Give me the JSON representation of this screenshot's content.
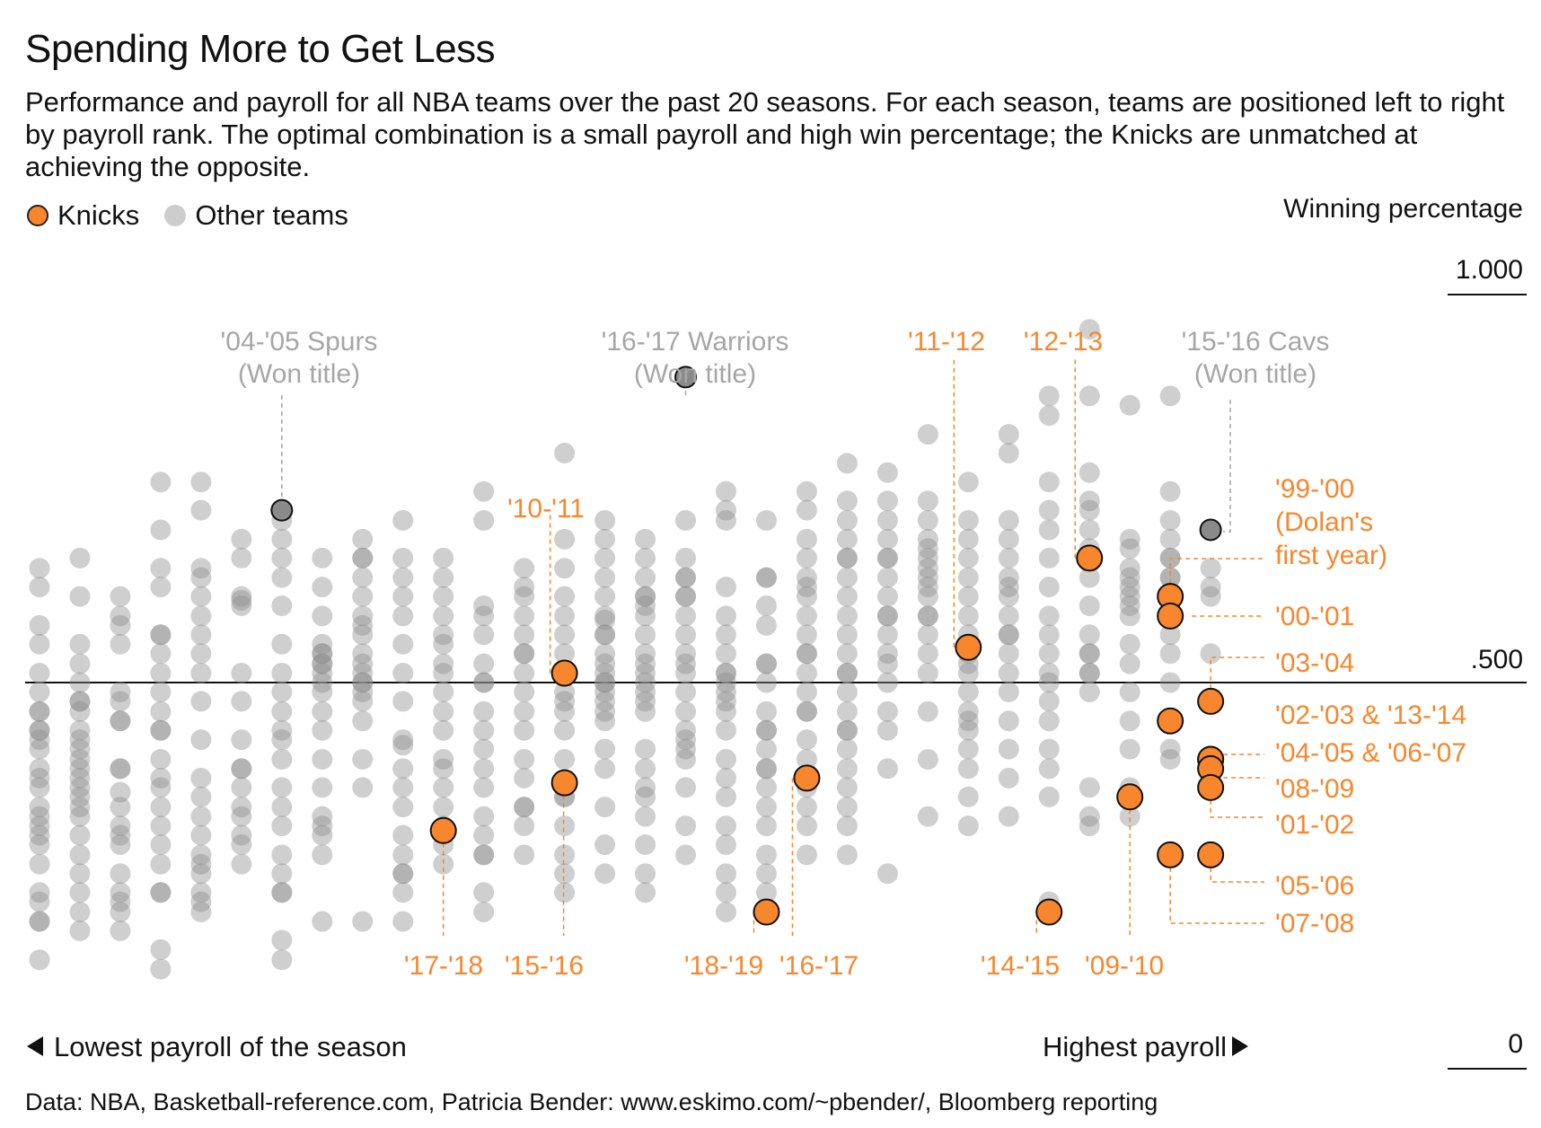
{
  "title": "Spending More to Get Less",
  "subtitle": "Performance and payroll for all NBA teams over the past 20 seasons. For each season, teams are positioned left to right by payroll rank. The optimal combination is a small payroll and high win percentage; the Knicks are unmatched at achieving the opposite.",
  "legend": {
    "knicks": "Knicks",
    "other": "Other teams"
  },
  "footer": "Data: NBA, Basketball-reference.com, Patricia Bender: www.eskimo.com/~pbender/, Bloomberg reporting",
  "colors": {
    "knicks": "#f7862d",
    "other": "#b9b9b9",
    "highlight": "#8a8a8a",
    "annotation_gray": "#a6a6a6"
  },
  "chart_data": {
    "type": "scatter",
    "ylabel": "Winning percentage",
    "ylim": [
      0,
      1
    ],
    "ytick_labels": {
      "top": "1.000",
      "mid": ".500",
      "bottom": "0"
    },
    "x_left_label": "Lowest payroll of the season",
    "x_right_label": "Highest payroll",
    "xlim": [
      1,
      30
    ],
    "knicks": [
      {
        "rank": 11,
        "y": 0.311,
        "label": "'17-'18"
      },
      {
        "rank": 14,
        "y": 0.372,
        "label": "'15-'16"
      },
      {
        "rank": 14,
        "y": 0.512,
        "label": "'10-'11"
      },
      {
        "rank": 19,
        "y": 0.207,
        "label": "'18-'19"
      },
      {
        "rank": 20,
        "y": 0.378,
        "label": "'16-'17"
      },
      {
        "rank": 24,
        "y": 0.545,
        "label": "'11-'12"
      },
      {
        "rank": 26,
        "y": 0.207,
        "label": "'14-'15"
      },
      {
        "rank": 27,
        "y": 0.659,
        "label": "'12-'13"
      },
      {
        "rank": 28,
        "y": 0.354,
        "label": "'09-'10"
      },
      {
        "rank": 29,
        "y": 0.61,
        "label": "'99-'00 (Dolan's first year)"
      },
      {
        "rank": 29,
        "y": 0.585,
        "label": "'00-'01"
      },
      {
        "rank": 29,
        "y": 0.451,
        "label": "'02-'03 & '13-'14"
      },
      {
        "rank": 29,
        "y": 0.28,
        "label": "'07-'08"
      },
      {
        "rank": 30,
        "y": 0.476,
        "label": "'03-'04"
      },
      {
        "rank": 30,
        "y": 0.402,
        "label": "'04-'05"
      },
      {
        "rank": 30,
        "y": 0.402,
        "label": "'06-'07"
      },
      {
        "rank": 30,
        "y": 0.39,
        "label": "'08-'09"
      },
      {
        "rank": 30,
        "y": 0.366,
        "label": "'01-'02"
      },
      {
        "rank": 30,
        "y": 0.28,
        "label": "'05-'06"
      }
    ],
    "highlights": [
      {
        "rank": 7,
        "y": 0.72,
        "label": "'04-'05 Spurs",
        "sublabel": "(Won title)"
      },
      {
        "rank": 17,
        "y": 0.89,
        "label": "'16-'17 Warriors",
        "sublabel": "(Won title)"
      },
      {
        "rank": 30,
        "y": 0.695,
        "label": "'15-'16 Cavs",
        "sublabel": "(Won title)"
      }
    ],
    "other_teams": [
      [
        0.646,
        0.622,
        0.463,
        0.439,
        0.415,
        0.39,
        0.366,
        0.341,
        0.317,
        0.293,
        0.268,
        0.232,
        0.22,
        0.195,
        0.146,
        0.573,
        0.488,
        0.549,
        0.512,
        0.463,
        0.427,
        0.378,
        0.329,
        0.195,
        0.439,
        0.305
      ],
      [
        0.659,
        0.549,
        0.5,
        0.476,
        0.463,
        0.427,
        0.415,
        0.402,
        0.39,
        0.378,
        0.354,
        0.329,
        0.305,
        0.28,
        0.256,
        0.232,
        0.183,
        0.61,
        0.476,
        0.366,
        0.207,
        0.524,
        0.439,
        0.341
      ],
      [
        0.61,
        0.585,
        0.573,
        0.476,
        0.451,
        0.39,
        0.341,
        0.317,
        0.293,
        0.256,
        0.232,
        0.207,
        0.183,
        0.488,
        0.36,
        0.39,
        0.22,
        0.549,
        0.451,
        0.305
      ],
      [
        0.756,
        0.695,
        0.646,
        0.622,
        0.561,
        0.537,
        0.512,
        0.488,
        0.463,
        0.439,
        0.402,
        0.378,
        0.341,
        0.317,
        0.293,
        0.268,
        0.232,
        0.159,
        0.134,
        0.232,
        0.561,
        0.439,
        0.366
      ],
      [
        0.756,
        0.72,
        0.646,
        0.61,
        0.585,
        0.561,
        0.537,
        0.512,
        0.427,
        0.378,
        0.329,
        0.305,
        0.28,
        0.256,
        0.232,
        0.22,
        0.634,
        0.476,
        0.354,
        0.207,
        0.268
      ],
      [
        0.683,
        0.659,
        0.61,
        0.598,
        0.512,
        0.476,
        0.427,
        0.39,
        0.366,
        0.329,
        0.293,
        0.268,
        0.605,
        0.39,
        0.341,
        0.305
      ],
      [
        0.72,
        0.707,
        0.683,
        0.659,
        0.634,
        0.598,
        0.549,
        0.512,
        0.488,
        0.463,
        0.427,
        0.402,
        0.366,
        0.341,
        0.317,
        0.28,
        0.232,
        0.171,
        0.232,
        0.439,
        0.256,
        0.146
      ],
      [
        0.659,
        0.622,
        0.585,
        0.549,
        0.537,
        0.512,
        0.488,
        0.463,
        0.439,
        0.402,
        0.366,
        0.329,
        0.305,
        0.28,
        0.195,
        0.537,
        0.5,
        0.317,
        0.524,
        0.524
      ],
      [
        0.683,
        0.659,
        0.634,
        0.61,
        0.585,
        0.561,
        0.537,
        0.524,
        0.5,
        0.488,
        0.476,
        0.451,
        0.402,
        0.195,
        0.366,
        0.512,
        0.659,
        0.573,
        0.5
      ],
      [
        0.707,
        0.659,
        0.634,
        0.61,
        0.585,
        0.549,
        0.512,
        0.476,
        0.427,
        0.39,
        0.366,
        0.341,
        0.305,
        0.28,
        0.256,
        0.232,
        0.256,
        0.42,
        0.195
      ],
      [
        0.634,
        0.61,
        0.585,
        0.549,
        0.512,
        0.488,
        0.463,
        0.439,
        0.402,
        0.366,
        0.341,
        0.317,
        0.293,
        0.268,
        0.659,
        0.561,
        0.39,
        0.524
      ],
      [
        0.744,
        0.707,
        0.585,
        0.561,
        0.524,
        0.5,
        0.463,
        0.439,
        0.415,
        0.39,
        0.366,
        0.329,
        0.305,
        0.28,
        0.232,
        0.207,
        0.598,
        0.5,
        0.28
      ],
      [
        0.646,
        0.61,
        0.585,
        0.561,
        0.537,
        0.512,
        0.488,
        0.463,
        0.439,
        0.402,
        0.378,
        0.341,
        0.317,
        0.28,
        0.622,
        0.537,
        0.341
      ],
      [
        0.793,
        0.683,
        0.646,
        0.61,
        0.585,
        0.561,
        0.537,
        0.488,
        0.463,
        0.439,
        0.402,
        0.354,
        0.317,
        0.28,
        0.256,
        0.232,
        0.354,
        0.476
      ],
      [
        0.707,
        0.683,
        0.659,
        0.634,
        0.61,
        0.585,
        0.561,
        0.537,
        0.524,
        0.512,
        0.5,
        0.488,
        0.476,
        0.463,
        0.451,
        0.415,
        0.39,
        0.341,
        0.293,
        0.256,
        0.561,
        0.5,
        0.58
      ],
      [
        0.683,
        0.659,
        0.634,
        0.61,
        0.585,
        0.561,
        0.537,
        0.512,
        0.488,
        0.476,
        0.463,
        0.415,
        0.39,
        0.366,
        0.329,
        0.293,
        0.256,
        0.232,
        0.61,
        0.524,
        0.354,
        0.598,
        0.5
      ],
      [
        0.707,
        0.659,
        0.634,
        0.61,
        0.585,
        0.561,
        0.537,
        0.512,
        0.488,
        0.463,
        0.439,
        0.415,
        0.402,
        0.366,
        0.317,
        0.28,
        0.634,
        0.524,
        0.427,
        0.61
      ],
      [
        0.744,
        0.72,
        0.707,
        0.622,
        0.585,
        0.561,
        0.537,
        0.512,
        0.488,
        0.463,
        0.439,
        0.402,
        0.378,
        0.354,
        0.317,
        0.293,
        0.256,
        0.232,
        0.207,
        0.512,
        0.5,
        0.476
      ],
      [
        0.707,
        0.634,
        0.598,
        0.573,
        0.524,
        0.5,
        0.463,
        0.439,
        0.415,
        0.39,
        0.366,
        0.341,
        0.317,
        0.28,
        0.256,
        0.232,
        0.634,
        0.439,
        0.39,
        0.524
      ],
      [
        0.744,
        0.72,
        0.683,
        0.659,
        0.634,
        0.61,
        0.585,
        0.561,
        0.537,
        0.512,
        0.488,
        0.463,
        0.427,
        0.402,
        0.366,
        0.341,
        0.317,
        0.28,
        0.622,
        0.537,
        0.463
      ],
      [
        0.78,
        0.732,
        0.707,
        0.683,
        0.659,
        0.634,
        0.61,
        0.585,
        0.561,
        0.537,
        0.512,
        0.488,
        0.463,
        0.439,
        0.415,
        0.39,
        0.366,
        0.341,
        0.317,
        0.28,
        0.659,
        0.512,
        0.439
      ],
      [
        0.768,
        0.732,
        0.707,
        0.683,
        0.659,
        0.634,
        0.61,
        0.585,
        0.561,
        0.537,
        0.5,
        0.463,
        0.439,
        0.39,
        0.256,
        0.659,
        0.585,
        0.524
      ],
      [
        0.817,
        0.732,
        0.707,
        0.683,
        0.659,
        0.634,
        0.61,
        0.585,
        0.561,
        0.537,
        0.512,
        0.463,
        0.402,
        0.329,
        0.671,
        0.622,
        0.646,
        0.585
      ],
      [
        0.756,
        0.707,
        0.683,
        0.659,
        0.634,
        0.61,
        0.585,
        0.561,
        0.537,
        0.512,
        0.488,
        0.463,
        0.439,
        0.415,
        0.39,
        0.354,
        0.317,
        0.549,
        0.524,
        0.451
      ],
      [
        0.817,
        0.793,
        0.707,
        0.683,
        0.659,
        0.634,
        0.61,
        0.585,
        0.561,
        0.537,
        0.512,
        0.488,
        0.451,
        0.415,
        0.378,
        0.329,
        0.622,
        0.561
      ],
      [
        0.866,
        0.841,
        0.756,
        0.72,
        0.695,
        0.659,
        0.622,
        0.585,
        0.561,
        0.537,
        0.5,
        0.476,
        0.451,
        0.415,
        0.39,
        0.354,
        0.22,
        0.512
      ],
      [
        0.951,
        0.866,
        0.768,
        0.732,
        0.695,
        0.671,
        0.634,
        0.598,
        0.561,
        0.537,
        0.512,
        0.488,
        0.366,
        0.329,
        0.317,
        0.72,
        0.512,
        0.537
      ],
      [
        0.683,
        0.646,
        0.61,
        0.585,
        0.549,
        0.524,
        0.488,
        0.451,
        0.415,
        0.366,
        0.329,
        0.671,
        0.634,
        0.598,
        0.622,
        0.854
      ],
      [
        0.866,
        0.744,
        0.707,
        0.683,
        0.659,
        0.634,
        0.61,
        0.585,
        0.561,
        0.537,
        0.5,
        0.415,
        0.402,
        0.659,
        0.634,
        0.61
      ],
      [
        0.695,
        0.646,
        0.537,
        0.61,
        0.622
      ]
    ],
    "dark_flags": "darker dots are overlapping points (opacity)"
  }
}
